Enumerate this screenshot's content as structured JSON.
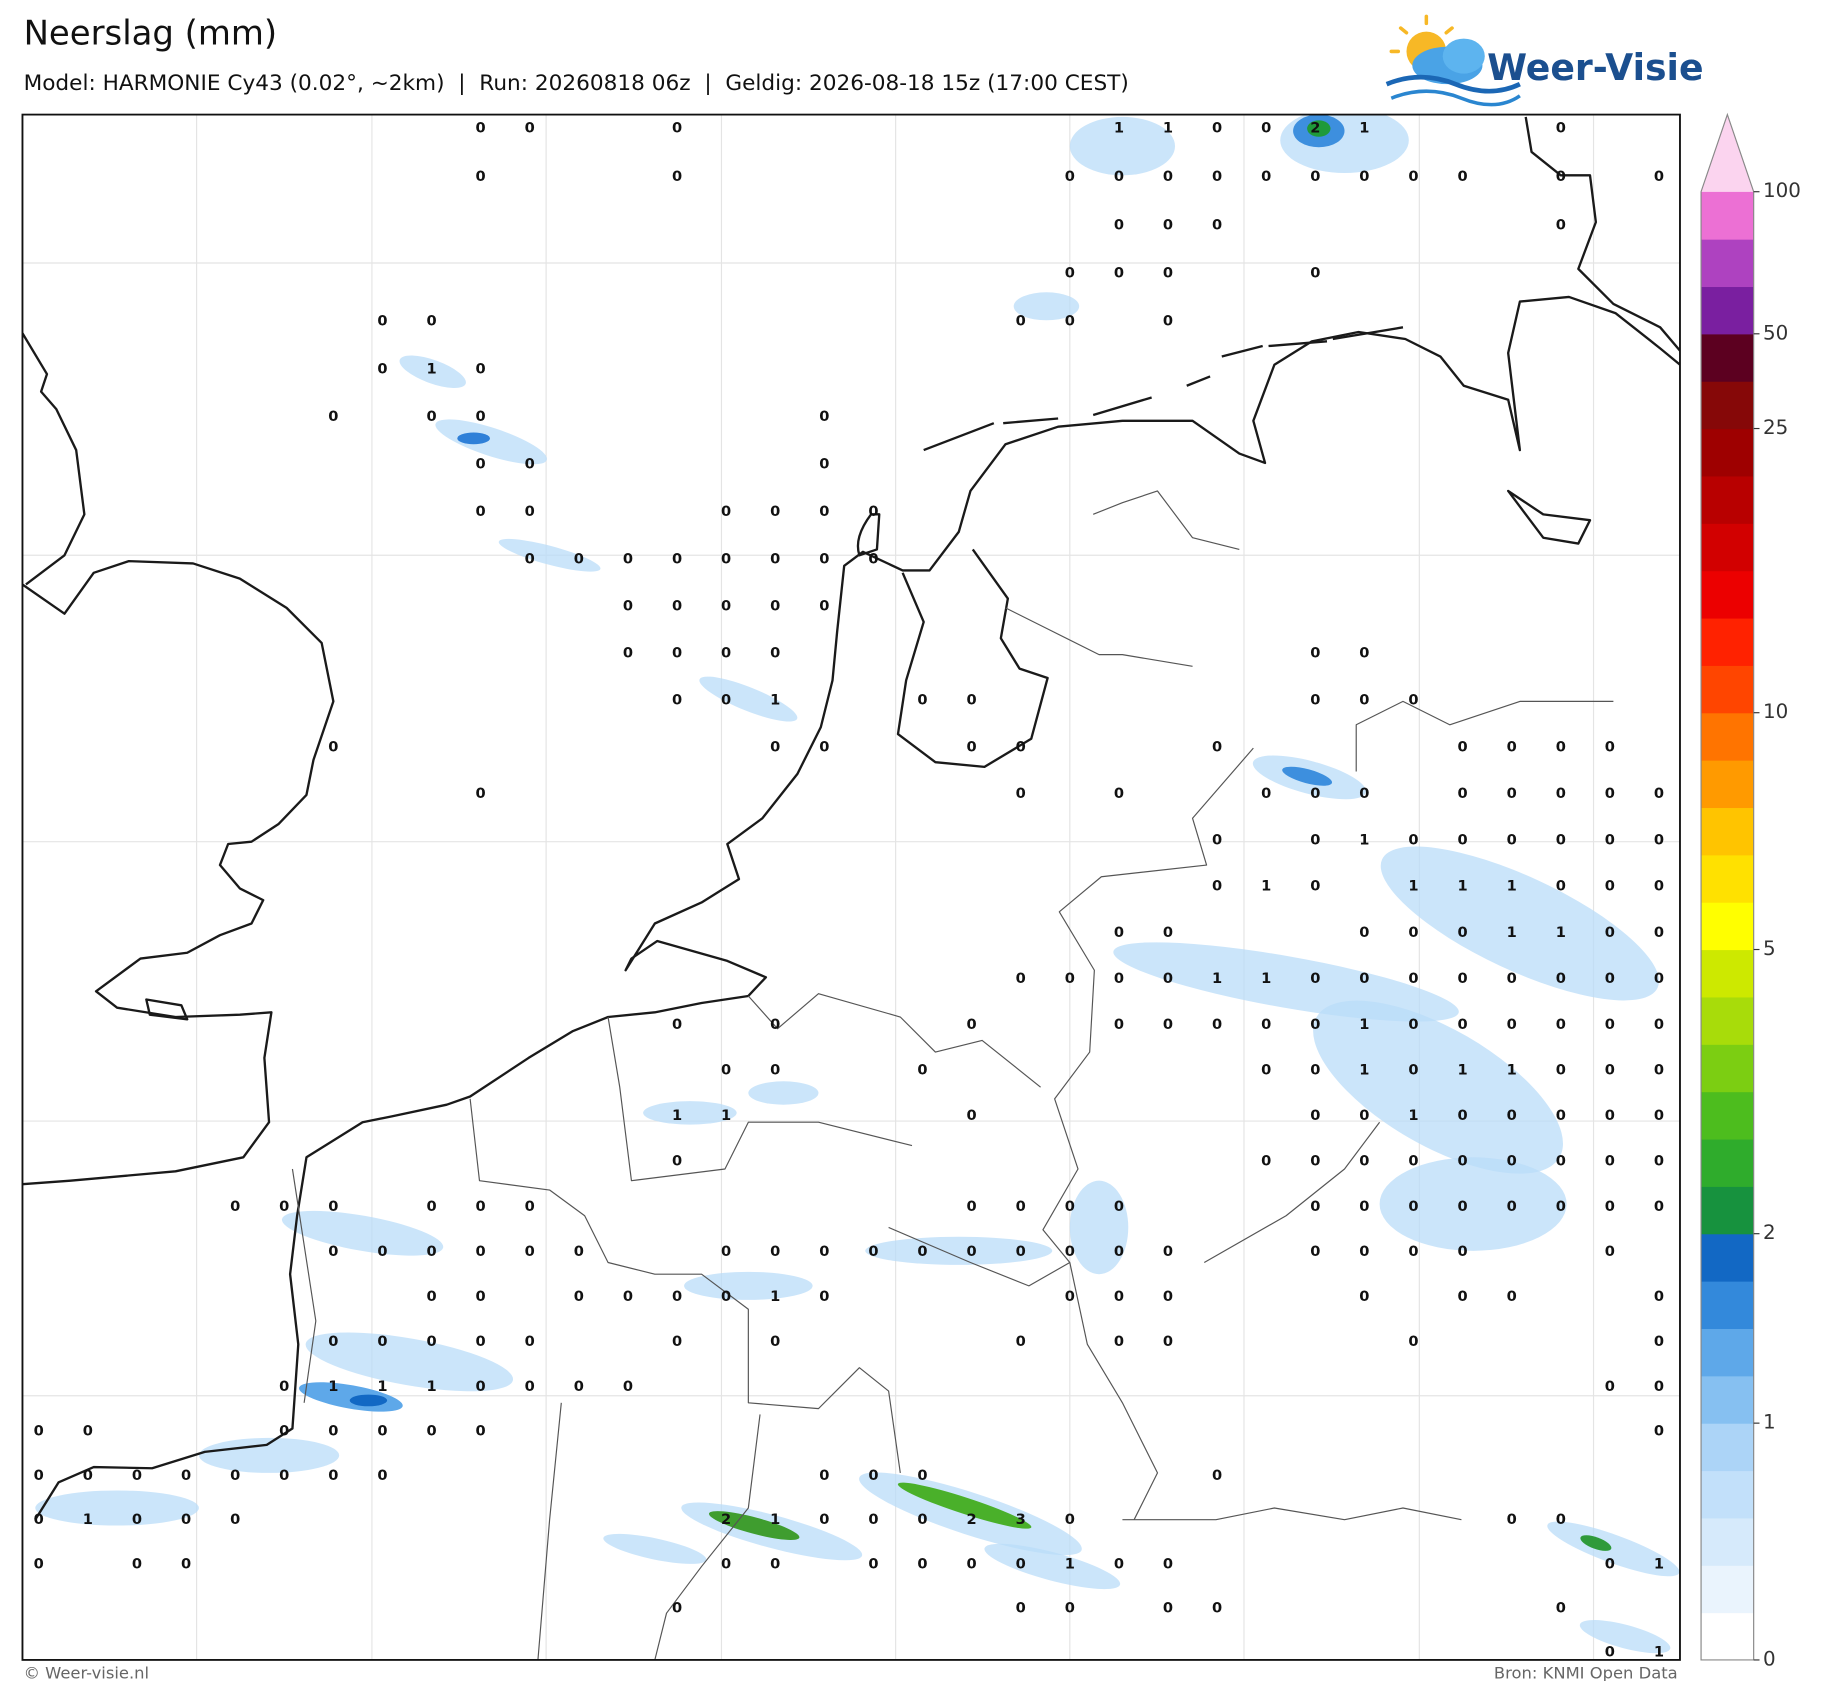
{
  "header": {
    "title": "Neerslag (mm)",
    "subtitle": "Model: HARMONIE Cy43 (0.02°, ~2km)  |  Run: 20260818 06z  |  Geldig: 2026-08-18 15z (17:00 CEST)",
    "logo": "Weer-Visie"
  },
  "map": {
    "stations": {
      "rows": [
        [
          null,
          null,
          null,
          null,
          null,
          null,
          null,
          null,
          null,
          0,
          0,
          null,
          null,
          0,
          null,
          null,
          null,
          null,
          null,
          null,
          null,
          null,
          1,
          1,
          0,
          0,
          2,
          1,
          null,
          null,
          null,
          0,
          null,
          null
        ],
        [
          null,
          null,
          null,
          null,
          null,
          null,
          null,
          null,
          null,
          0,
          null,
          null,
          null,
          0,
          null,
          null,
          null,
          null,
          null,
          null,
          null,
          0,
          0,
          0,
          0,
          0,
          0,
          0,
          0,
          0,
          null,
          0,
          null,
          0
        ],
        [
          null,
          null,
          null,
          null,
          null,
          null,
          null,
          null,
          null,
          null,
          null,
          null,
          null,
          null,
          null,
          null,
          null,
          null,
          null,
          null,
          null,
          null,
          0,
          0,
          0,
          null,
          null,
          null,
          null,
          null,
          null,
          0,
          null,
          null
        ],
        [
          null,
          null,
          null,
          null,
          null,
          null,
          null,
          null,
          null,
          null,
          null,
          null,
          null,
          null,
          null,
          null,
          null,
          null,
          null,
          null,
          null,
          0,
          0,
          0,
          null,
          null,
          0,
          null,
          null,
          null,
          null,
          null,
          null,
          null
        ],
        [
          null,
          null,
          null,
          null,
          null,
          null,
          null,
          0,
          0,
          null,
          null,
          null,
          null,
          null,
          null,
          null,
          null,
          null,
          null,
          null,
          0,
          0,
          null,
          0,
          null,
          null,
          null,
          null,
          null,
          null,
          null,
          null,
          null,
          null
        ],
        [
          null,
          null,
          null,
          null,
          null,
          null,
          null,
          0,
          1,
          0,
          null,
          null,
          null,
          null,
          null,
          null,
          null,
          null,
          null,
          null,
          null,
          null,
          null,
          null,
          null,
          null,
          null,
          null,
          null,
          null,
          null,
          null,
          null,
          null
        ],
        [
          null,
          null,
          null,
          null,
          null,
          null,
          0,
          null,
          0,
          0,
          null,
          null,
          null,
          null,
          null,
          null,
          0,
          null,
          null,
          null,
          null,
          null,
          null,
          null,
          null,
          null,
          null,
          null,
          null,
          null,
          null,
          null,
          null,
          null
        ],
        [
          null,
          null,
          null,
          null,
          null,
          null,
          null,
          null,
          null,
          0,
          0,
          null,
          null,
          null,
          null,
          null,
          0,
          null,
          null,
          null,
          null,
          null,
          null,
          null,
          null,
          null,
          null,
          null,
          null,
          null,
          null,
          null,
          null,
          null
        ],
        [
          null,
          null,
          null,
          null,
          null,
          null,
          null,
          null,
          null,
          0,
          0,
          null,
          null,
          null,
          0,
          0,
          0,
          0,
          null,
          null,
          null,
          null,
          null,
          null,
          null,
          null,
          null,
          null,
          null,
          null,
          null,
          null,
          null,
          null
        ],
        [
          null,
          null,
          null,
          null,
          null,
          null,
          null,
          null,
          null,
          null,
          0,
          0,
          0,
          0,
          0,
          0,
          0,
          0,
          null,
          null,
          null,
          null,
          null,
          null,
          null,
          null,
          null,
          null,
          null,
          null,
          null,
          null,
          null,
          null
        ],
        [
          null,
          null,
          null,
          null,
          null,
          null,
          null,
          null,
          null,
          null,
          null,
          null,
          0,
          0,
          0,
          0,
          0,
          null,
          null,
          null,
          null,
          null,
          null,
          null,
          null,
          null,
          null,
          null,
          null,
          null,
          null,
          null,
          null,
          null
        ],
        [
          null,
          null,
          null,
          null,
          null,
          null,
          null,
          null,
          null,
          null,
          null,
          null,
          0,
          0,
          0,
          0,
          null,
          null,
          null,
          null,
          null,
          null,
          null,
          null,
          null,
          null,
          0,
          0,
          null,
          null,
          null,
          null,
          null,
          null
        ],
        [
          null,
          null,
          null,
          null,
          null,
          null,
          null,
          null,
          null,
          null,
          null,
          null,
          null,
          0,
          0,
          1,
          null,
          null,
          0,
          0,
          null,
          null,
          null,
          null,
          null,
          null,
          0,
          0,
          0,
          null,
          null,
          null,
          null,
          null
        ],
        [
          null,
          null,
          null,
          null,
          null,
          null,
          0,
          null,
          null,
          null,
          null,
          null,
          null,
          null,
          null,
          0,
          0,
          null,
          null,
          0,
          0,
          null,
          null,
          null,
          0,
          null,
          null,
          null,
          null,
          0,
          0,
          0,
          0,
          null
        ],
        [
          null,
          null,
          null,
          null,
          null,
          null,
          null,
          null,
          null,
          0,
          null,
          null,
          null,
          null,
          null,
          null,
          null,
          null,
          null,
          null,
          0,
          null,
          0,
          null,
          null,
          0,
          0,
          0,
          null,
          0,
          0,
          0,
          0,
          0
        ],
        [
          null,
          null,
          null,
          null,
          null,
          null,
          null,
          null,
          null,
          null,
          null,
          null,
          null,
          null,
          null,
          null,
          null,
          null,
          null,
          null,
          null,
          null,
          null,
          null,
          0,
          null,
          0,
          1,
          0,
          0,
          0,
          0,
          0,
          0
        ],
        [
          null,
          null,
          null,
          null,
          null,
          null,
          null,
          null,
          null,
          null,
          null,
          null,
          null,
          null,
          null,
          null,
          null,
          null,
          null,
          null,
          null,
          null,
          null,
          null,
          0,
          1,
          0,
          null,
          1,
          1,
          1,
          0,
          0,
          0
        ],
        [
          null,
          null,
          null,
          null,
          null,
          null,
          null,
          null,
          null,
          null,
          null,
          null,
          null,
          null,
          null,
          null,
          null,
          null,
          null,
          null,
          null,
          null,
          0,
          0,
          null,
          null,
          null,
          0,
          0,
          0,
          1,
          1,
          0,
          0
        ],
        [
          null,
          null,
          null,
          null,
          null,
          null,
          null,
          null,
          null,
          null,
          null,
          null,
          null,
          null,
          null,
          null,
          null,
          null,
          null,
          null,
          0,
          0,
          0,
          0,
          1,
          1,
          0,
          0,
          0,
          0,
          0,
          0,
          0,
          0
        ],
        [
          null,
          null,
          null,
          null,
          null,
          null,
          null,
          null,
          null,
          null,
          null,
          null,
          null,
          0,
          null,
          0,
          null,
          null,
          null,
          0,
          null,
          null,
          0,
          0,
          0,
          0,
          0,
          1,
          0,
          0,
          0,
          0,
          0,
          0
        ],
        [
          null,
          null,
          null,
          null,
          null,
          null,
          null,
          null,
          null,
          null,
          null,
          null,
          null,
          null,
          0,
          0,
          null,
          null,
          0,
          null,
          null,
          null,
          null,
          null,
          null,
          0,
          0,
          1,
          0,
          1,
          1,
          0,
          0,
          0
        ],
        [
          null,
          null,
          null,
          null,
          null,
          null,
          null,
          null,
          null,
          null,
          null,
          null,
          null,
          1,
          1,
          null,
          null,
          null,
          null,
          0,
          null,
          null,
          null,
          null,
          null,
          null,
          0,
          0,
          1,
          0,
          0,
          0,
          0,
          0
        ],
        [
          null,
          null,
          null,
          null,
          null,
          null,
          null,
          null,
          null,
          null,
          null,
          null,
          null,
          0,
          null,
          null,
          null,
          null,
          null,
          null,
          null,
          null,
          null,
          null,
          null,
          0,
          0,
          0,
          0,
          0,
          0,
          0,
          0,
          0
        ],
        [
          null,
          null,
          null,
          null,
          0,
          0,
          0,
          null,
          0,
          0,
          0,
          null,
          null,
          null,
          null,
          null,
          null,
          null,
          null,
          0,
          0,
          0,
          0,
          null,
          null,
          null,
          0,
          0,
          0,
          0,
          0,
          0,
          0,
          0
        ],
        [
          null,
          null,
          null,
          null,
          null,
          null,
          0,
          0,
          0,
          0,
          0,
          0,
          null,
          null,
          0,
          0,
          0,
          0,
          0,
          0,
          0,
          0,
          0,
          0,
          null,
          null,
          0,
          0,
          0,
          0,
          null,
          null,
          0,
          null
        ],
        [
          null,
          null,
          null,
          null,
          null,
          null,
          null,
          null,
          0,
          0,
          null,
          0,
          0,
          0,
          0,
          1,
          0,
          null,
          null,
          null,
          null,
          0,
          0,
          0,
          null,
          null,
          null,
          0,
          null,
          0,
          0,
          null,
          null,
          0
        ],
        [
          null,
          null,
          null,
          null,
          null,
          null,
          0,
          0,
          0,
          0,
          0,
          null,
          null,
          0,
          null,
          0,
          null,
          null,
          null,
          null,
          0,
          null,
          0,
          0,
          null,
          null,
          null,
          null,
          0,
          null,
          null,
          null,
          null,
          0
        ],
        [
          null,
          null,
          null,
          null,
          null,
          0,
          1,
          1,
          1,
          0,
          0,
          0,
          0,
          null,
          null,
          null,
          null,
          null,
          null,
          null,
          null,
          null,
          null,
          null,
          null,
          null,
          null,
          null,
          null,
          null,
          null,
          null,
          0,
          0
        ],
        [
          0,
          0,
          null,
          null,
          null,
          0,
          0,
          0,
          0,
          0,
          null,
          null,
          null,
          null,
          null,
          null,
          null,
          null,
          null,
          null,
          null,
          null,
          null,
          null,
          null,
          null,
          null,
          null,
          null,
          null,
          null,
          null,
          null,
          0
        ],
        [
          0,
          0,
          0,
          0,
          0,
          0,
          0,
          0,
          null,
          null,
          null,
          null,
          null,
          null,
          null,
          null,
          0,
          0,
          0,
          null,
          null,
          null,
          null,
          null,
          0,
          null,
          null,
          null,
          null,
          null,
          null,
          null,
          null,
          null
        ],
        [
          0,
          1,
          0,
          0,
          0,
          null,
          null,
          null,
          null,
          null,
          null,
          null,
          null,
          null,
          2,
          1,
          0,
          0,
          0,
          2,
          3,
          0,
          null,
          null,
          null,
          null,
          null,
          null,
          null,
          null,
          0,
          0,
          null,
          null
        ],
        [
          0,
          null,
          0,
          0,
          null,
          null,
          null,
          null,
          null,
          null,
          null,
          null,
          null,
          null,
          0,
          0,
          null,
          0,
          0,
          0,
          0,
          1,
          0,
          0,
          null,
          null,
          null,
          null,
          null,
          null,
          null,
          null,
          0,
          1
        ],
        [
          null,
          null,
          null,
          null,
          null,
          null,
          null,
          null,
          null,
          null,
          null,
          null,
          null,
          0,
          null,
          null,
          null,
          null,
          null,
          null,
          0,
          0,
          null,
          0,
          0,
          null,
          null,
          null,
          null,
          null,
          null,
          0,
          null,
          null
        ],
        [
          null,
          null,
          null,
          null,
          null,
          null,
          null,
          null,
          null,
          null,
          null,
          null,
          null,
          null,
          null,
          null,
          null,
          null,
          null,
          null,
          null,
          null,
          null,
          null,
          null,
          null,
          null,
          null,
          null,
          null,
          null,
          null,
          0,
          1
        ]
      ]
    }
  },
  "colorbar": {
    "levels": [
      0,
      0.1,
      0.2,
      0.3,
      0.5,
      1,
      1.2,
      1.4,
      1.6,
      2,
      2.5,
      3,
      3.5,
      4,
      4.5,
      5,
      6,
      7,
      8,
      9,
      10,
      12,
      14,
      16,
      18,
      20,
      25,
      30,
      50,
      60,
      80,
      100
    ],
    "colors": [
      "#ffffff",
      "#eaf4fd",
      "#d6eafb",
      "#c2e0fa",
      "#acd4f7",
      "#86c0f1",
      "#5ea8e9",
      "#3389db",
      "#1268c4",
      "#17923e",
      "#2fac2c",
      "#4dbd1e",
      "#7cce12",
      "#a8dc0a",
      "#cde900",
      "#ffff00",
      "#ffe100",
      "#ffc400",
      "#ff9a00",
      "#ff7400",
      "#ff4500",
      "#ff2200",
      "#ec0000",
      "#d20000",
      "#b80000",
      "#9e0000",
      "#860808",
      "#5c0020",
      "#7a1fa0",
      "#ae42c0",
      "#ec70d4"
    ],
    "extend_color": "#fbd4ef",
    "ticks": [
      0,
      1,
      2,
      5,
      10,
      25,
      50,
      100
    ]
  },
  "footer": {
    "left": "© Weer-visie.nl",
    "right": "Bron: KNMI Open Data"
  }
}
